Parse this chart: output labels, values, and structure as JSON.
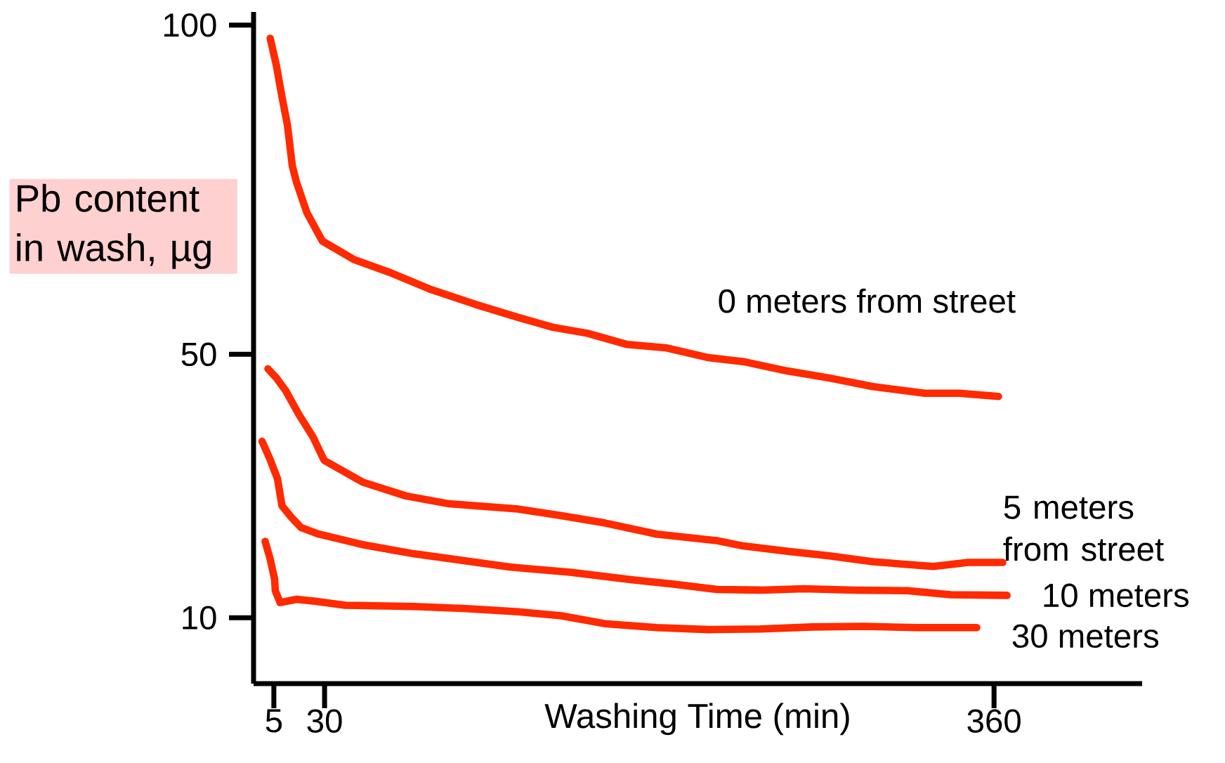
{
  "chart_data": {
    "type": "line",
    "xlabel": "Washing Time (min)",
    "ylabel": "Pb content in wash, µg",
    "xlim": [
      -5,
      433
    ],
    "ylim": [
      0,
      102
    ],
    "xticks": [
      5,
      30,
      360
    ],
    "yticks": [
      10,
      50,
      100
    ],
    "grid": false,
    "legend": false,
    "marker": "none",
    "line_style": "solid",
    "series": [
      {
        "name": "0 meters from street",
        "color": "#ff2a00",
        "x": [
          3.2,
          6.3,
          9.0,
          11.7,
          14.1,
          16.2,
          21.3,
          28.9,
          44.5,
          61.6,
          82.9,
          104.2,
          125.5,
          142.6,
          159.6,
          179.2,
          198.0,
          219.3,
          236.4,
          257.7,
          279.0,
          300.3,
          325.9,
          343.0,
          362.2
        ],
        "values": [
          98.0,
          93.8,
          89.1,
          84.8,
          78.6,
          76.1,
          71.5,
          67.2,
          64.4,
          62.5,
          59.8,
          57.6,
          55.6,
          54.1,
          53.2,
          51.5,
          51.0,
          49.5,
          48.9,
          47.5,
          46.4,
          45.1,
          44.1,
          44.1,
          43.6
        ]
      },
      {
        "name": "5 meters from street",
        "color": "#ff2a00",
        "x": [
          2.1,
          6.3,
          10.8,
          17.1,
          24.4,
          29.8,
          48.8,
          70.1,
          91.4,
          125.5,
          146.8,
          168.1,
          193.7,
          223.6,
          236.4,
          257.7,
          279.0,
          300.3,
          330.1,
          347.2,
          364.3
        ],
        "values": [
          47.8,
          46.4,
          44.5,
          41.0,
          37.4,
          33.9,
          30.6,
          28.5,
          27.3,
          26.5,
          25.5,
          24.4,
          22.7,
          21.7,
          20.9,
          20.1,
          19.4,
          18.5,
          17.8,
          18.4,
          18.4
        ]
      },
      {
        "name": "10 meters",
        "color": "#ff2a00",
        "x": [
          -0.8,
          3.2,
          6.8,
          9.0,
          13.5,
          18.4,
          27.1,
          48.8,
          74.3,
          95.7,
          121.2,
          151.1,
          180.9,
          202.2,
          223.6,
          244.9,
          266.2,
          291.8,
          317.4,
          338.7,
          366.4
        ],
        "values": [
          36.8,
          34.0,
          31.1,
          27.0,
          25.3,
          23.7,
          22.7,
          21.1,
          19.7,
          18.8,
          17.7,
          16.9,
          15.8,
          15.1,
          14.3,
          14.2,
          14.4,
          14.2,
          14.1,
          13.5,
          13.4
        ]
      },
      {
        "name": "30 meters",
        "color": "#ff2a00",
        "x": [
          0.7,
          3.2,
          5.4,
          5.7,
          8.1,
          16.2,
          25.3,
          40.2,
          74.3,
          99.9,
          125.5,
          146.8,
          168.1,
          193.7,
          219.3,
          244.9,
          270.5,
          296.0,
          321.6,
          351.5
        ],
        "values": [
          21.6,
          18.9,
          15.8,
          14.1,
          12.3,
          12.8,
          12.5,
          11.9,
          11.7,
          11.4,
          10.9,
          10.3,
          9.1,
          8.5,
          8.2,
          8.3,
          8.6,
          8.7,
          8.5,
          8.5
        ]
      }
    ]
  }
}
